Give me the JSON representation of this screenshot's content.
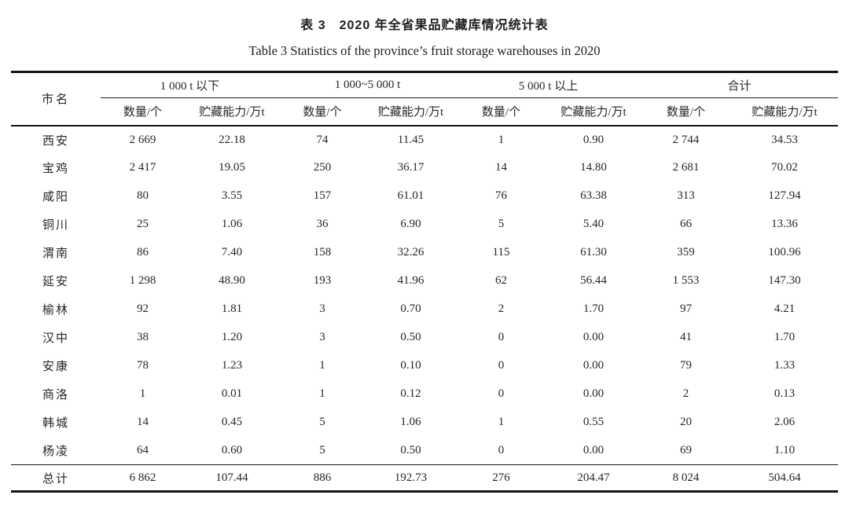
{
  "colors": {
    "background": "#ffffff",
    "rule_color": "#141414",
    "text_color": "#262626"
  },
  "title_cn": "表 3　2020 年全省果品贮藏库情况统计表",
  "title_en": "Table 3   Statistics of the province’s fruit storage warehouses in 2020",
  "table": {
    "city_header": "市名",
    "groups": [
      "1 000 t 以下",
      "1 000~5 000 t",
      "5 000 t 以上",
      "合计"
    ],
    "subheaders": [
      "数量/个",
      "贮藏能力/万t",
      "数量/个",
      "贮藏能力/万t",
      "数量/个",
      "贮藏能力/万t",
      "数量/个",
      "贮藏能力/万t"
    ],
    "rows": [
      {
        "city": "西安",
        "values": [
          "2 669",
          "22.18",
          "74",
          "11.45",
          "1",
          "0.90",
          "2 744",
          "34.53"
        ]
      },
      {
        "city": "宝鸡",
        "values": [
          "2 417",
          "19.05",
          "250",
          "36.17",
          "14",
          "14.80",
          "2 681",
          "70.02"
        ]
      },
      {
        "city": "咸阳",
        "values": [
          "80",
          "3.55",
          "157",
          "61.01",
          "76",
          "63.38",
          "313",
          "127.94"
        ]
      },
      {
        "city": "铜川",
        "values": [
          "25",
          "1.06",
          "36",
          "6.90",
          "5",
          "5.40",
          "66",
          "13.36"
        ]
      },
      {
        "city": "渭南",
        "values": [
          "86",
          "7.40",
          "158",
          "32.26",
          "115",
          "61.30",
          "359",
          "100.96"
        ]
      },
      {
        "city": "延安",
        "values": [
          "1 298",
          "48.90",
          "193",
          "41.96",
          "62",
          "56.44",
          "1 553",
          "147.30"
        ]
      },
      {
        "city": "榆林",
        "values": [
          "92",
          "1.81",
          "3",
          "0.70",
          "2",
          "1.70",
          "97",
          "4.21"
        ]
      },
      {
        "city": "汉中",
        "values": [
          "38",
          "1.20",
          "3",
          "0.50",
          "0",
          "0.00",
          "41",
          "1.70"
        ]
      },
      {
        "city": "安康",
        "values": [
          "78",
          "1.23",
          "1",
          "0.10",
          "0",
          "0.00",
          "79",
          "1.33"
        ]
      },
      {
        "city": "商洛",
        "values": [
          "1",
          "0.01",
          "1",
          "0.12",
          "0",
          "0.00",
          "2",
          "0.13"
        ]
      },
      {
        "city": "韩城",
        "values": [
          "14",
          "0.45",
          "5",
          "1.06",
          "1",
          "0.55",
          "20",
          "2.06"
        ]
      },
      {
        "city": "杨凌",
        "values": [
          "64",
          "0.60",
          "5",
          "0.50",
          "0",
          "0.00",
          "69",
          "1.10"
        ]
      }
    ],
    "total": {
      "city": "总计",
      "values": [
        "6 862",
        "107.44",
        "886",
        "192.73",
        "276",
        "204.47",
        "8 024",
        "504.64"
      ]
    }
  }
}
